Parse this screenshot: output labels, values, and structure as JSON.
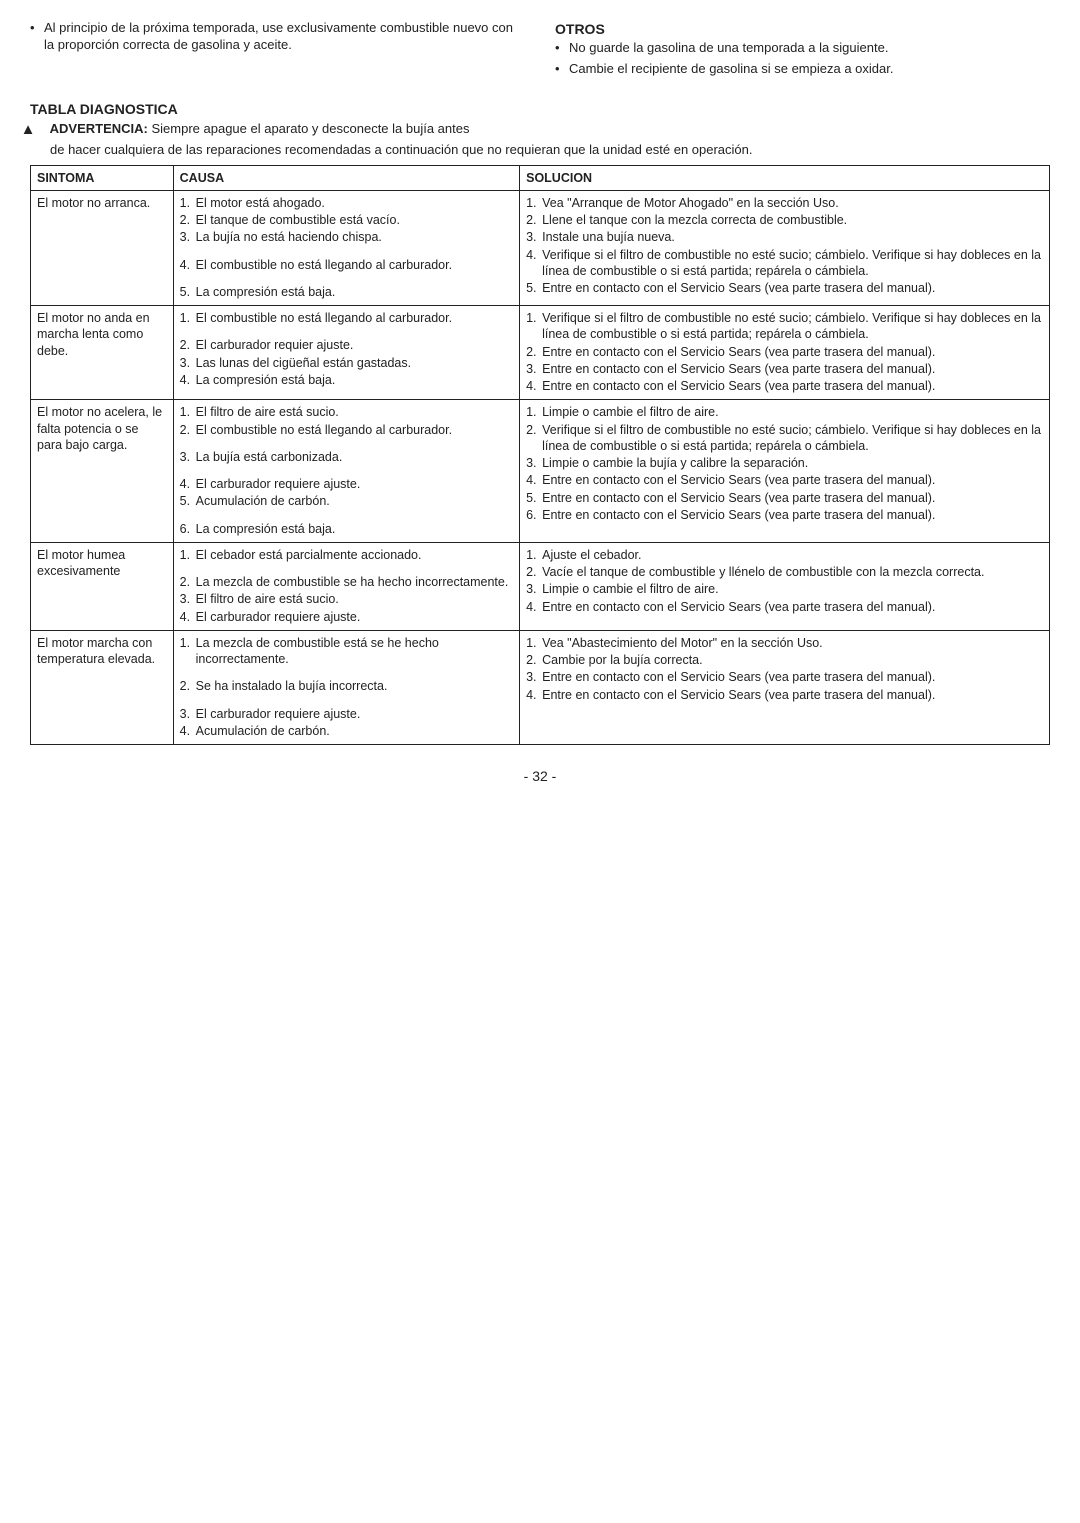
{
  "top": {
    "left_bullet": "Al principio de la próxima temporada, use exclusivamente combustible nuevo con la proporción correcta de gasolina y aceite.",
    "otros_heading": "OTROS",
    "otros_bullets": [
      "No guarde la gasolina de una temporada a la siguiente.",
      "Cambie el recipiente de gasolina si se empieza a oxidar."
    ]
  },
  "tabla_heading": "TABLA DIAGNOSTICA",
  "warning_label": "ADVERTENCIA:",
  "warning_text_1": "Siempre apague el aparato y desconecte la bujía antes",
  "warning_text_2": "de hacer cualquiera de las reparaciones recomendadas a continuación que no requieran que la unidad esté en operación.",
  "headers": {
    "sintoma": "SINTOMA",
    "causa": "CAUSA",
    "solucion": "SOLUCION"
  },
  "rows": [
    {
      "sintoma": "El motor no arranca.",
      "causa": [
        "El motor está ahogado.",
        "El tanque de combustible está vacío.",
        "La bujía no está haciendo chispa.",
        "El combustible no está llegando al carburador.",
        "La compresión está baja."
      ],
      "solucion": [
        "Vea \"Arranque de Motor Ahogado\" en la sección Uso.",
        "Llene el tanque con la mezcla correcta de combustible.",
        "Instale una bujía nueva.",
        "Verifique si el filtro de combustible no esté sucio; cámbielo. Verifique si hay dobleces en la línea de combustible o si está partida; repárela o cámbiela.",
        "Entre en contacto con el Servicio Sears (vea parte trasera del manual)."
      ],
      "gap_after": [
        2,
        3
      ]
    },
    {
      "sintoma": "El motor no anda en marcha lenta como debe.",
      "causa": [
        "El combustible no está llegando al carburador.",
        "El carburador requier ajuste.",
        "Las lunas del cigüeñal están gastadas.",
        "La compresión está baja."
      ],
      "solucion": [
        "Verifique si el filtro de combustible no esté sucio; cámbielo. Verifique si hay dobleces en la línea de combustible o si está partida; repárela o cámbiela.",
        "Entre en contacto con el Servicio Sears (vea parte trasera del manual).",
        "Entre en contacto con el Servicio Sears (vea parte trasera del manual).",
        "Entre en contacto con el Servicio Sears (vea parte trasera del manual)."
      ],
      "gap_after": [
        0
      ]
    },
    {
      "sintoma": "El motor no acelera, le falta potencia o se para bajo carga.",
      "causa": [
        "El filtro de aire está sucio.",
        "El combustible no está llegando al carburador.",
        "La bujía está carbonizada.",
        "El carburador requiere ajuste.",
        "Acumulación de carbón.",
        "La compresión está baja."
      ],
      "solucion": [
        "Limpie o cambie el filtro de aire.",
        "Verifique si el filtro de combustible no esté sucio; cámbielo. Verifique si hay dobleces en la línea de combustible o si está partida; repárela o cámbiela.",
        "Limpie o cambie la bujía y calibre la separación.",
        "Entre en contacto con el Servicio Sears (vea parte trasera del manual).",
        "Entre en contacto con el Servicio Sears (vea parte trasera del manual).",
        "Entre en contacto con el Servicio Sears (vea parte trasera del manual)."
      ],
      "gap_after": [
        1,
        2,
        4
      ]
    },
    {
      "sintoma": "El motor humea excesivamente",
      "causa": [
        "El cebador está parcialmente accionado.",
        "La mezcla de combustible se ha hecho incorrectamente.",
        "El filtro de aire está sucio.",
        "El carburador requiere ajuste."
      ],
      "solucion": [
        "Ajuste el cebador.",
        "Vacíe el tanque de combustible y llénelo de combustible con la mezcla correcta.",
        "Limpie o cambie el filtro de aire.",
        "Entre en contacto con el Servicio Sears (vea parte trasera del manual)."
      ],
      "gap_after": [
        0
      ]
    },
    {
      "sintoma": "El motor marcha con temperatura elevada.",
      "causa": [
        "La mezcla de combustible está se he hecho incorrectamente.",
        "Se ha instalado la bujía incorrecta.",
        "El carburador requiere ajuste.",
        "Acumulación de carbón."
      ],
      "solucion": [
        "Vea \"Abastecimiento del Motor\" en la sección Uso.",
        "Cambie por la bujía correcta.",
        "Entre en contacto con el Servicio Sears (vea parte trasera del manual).",
        "Entre en contacto con el Servicio Sears (vea parte trasera del manual)."
      ],
      "gap_after": [
        0,
        1
      ]
    }
  ],
  "page_number": "- 32 -"
}
